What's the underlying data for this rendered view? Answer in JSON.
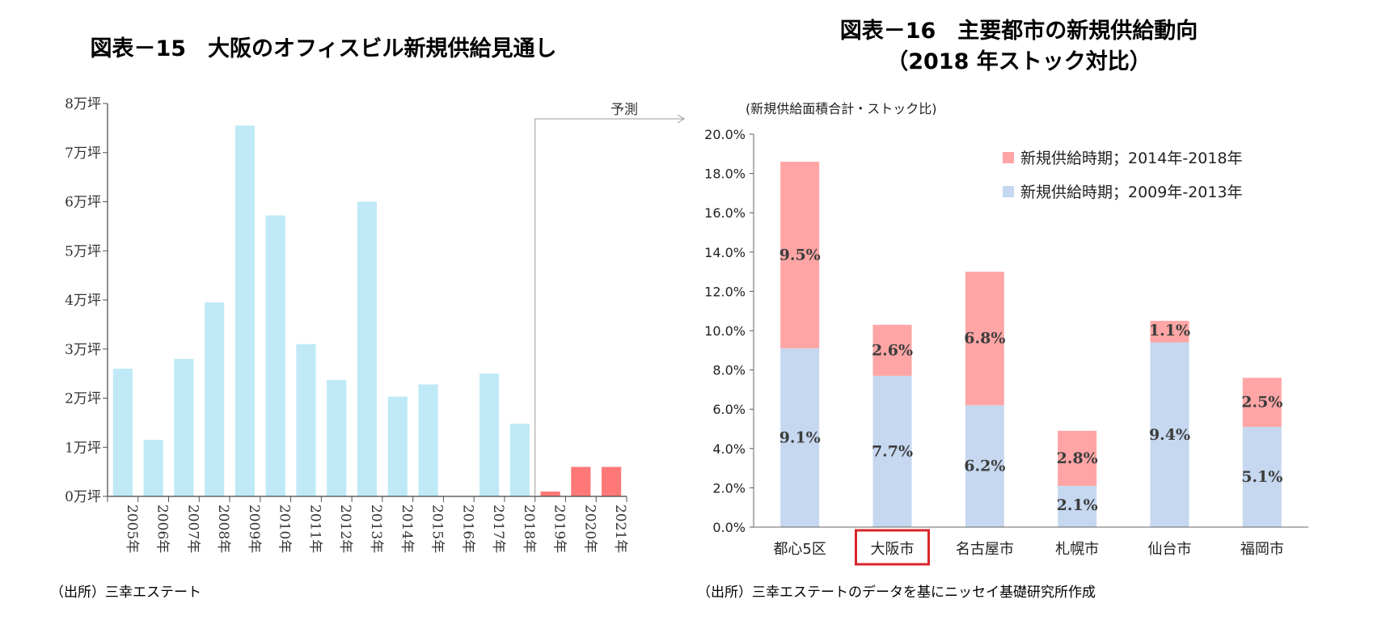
{
  "chart_data": [
    {
      "type": "bar",
      "title": "図表－15　大阪のオフィスビル新規供給見通し",
      "categories": [
        "2005年",
        "2006年",
        "2007年",
        "2008年",
        "2009年",
        "2010年",
        "2011年",
        "2012年",
        "2013年",
        "2014年",
        "2015年",
        "2016年",
        "2017年",
        "2018年",
        "2019年",
        "2020年",
        "2021年"
      ],
      "values": [
        2.6,
        1.15,
        2.8,
        3.95,
        7.55,
        5.72,
        3.1,
        2.37,
        6.0,
        2.03,
        2.28,
        0,
        2.5,
        1.48,
        0.1,
        0.6,
        0.6
      ],
      "forecast_start_index": 14,
      "forecast_label": "予測",
      "yticks": [
        "0万坪",
        "1万坪",
        "2万坪",
        "3万坪",
        "4万坪",
        "5万坪",
        "6万坪",
        "7万坪",
        "8万坪"
      ],
      "ylim": [
        0,
        8
      ],
      "colors": {
        "actual": "#bfe9f6",
        "forecast": "#ff7878"
      },
      "source": "（出所）三幸エステート"
    },
    {
      "type": "bar",
      "stacked": true,
      "title_line1": "図表－16　主要都市の新規供給動向",
      "title_line2": "（2018 年ストック対比）",
      "ylabel": "(新規供給面積合計・ストック比)",
      "categories": [
        "都心5区",
        "大阪市",
        "名古屋市",
        "札幌市",
        "仙台市",
        "福岡市"
      ],
      "highlight_category": "大阪市",
      "series": [
        {
          "name": "新規供給時期；2009年-2013年",
          "color": "#c6d8f0",
          "values": [
            9.1,
            7.7,
            6.2,
            2.1,
            9.4,
            5.1
          ],
          "labels": [
            "9.1%",
            "7.7%",
            "6.2%",
            "2.1%",
            "9.4%",
            "5.1%"
          ]
        },
        {
          "name": "新規供給時期；2014年-2018年",
          "color": "#ffa5a5",
          "values": [
            9.5,
            2.6,
            6.8,
            2.8,
            1.1,
            2.5
          ],
          "labels": [
            "9.5%",
            "2.6%",
            "6.8%",
            "2.8%",
            "1.1%",
            "2.5%"
          ]
        }
      ],
      "yticks": [
        "0.0%",
        "2.0%",
        "4.0%",
        "6.0%",
        "8.0%",
        "10.0%",
        "12.0%",
        "14.0%",
        "16.0%",
        "18.0%",
        "20.0%"
      ],
      "ylim": [
        0,
        20
      ],
      "legend_position": "top-right",
      "highlight_color": "#d9262b",
      "source": "（出所）三幸エステートのデータを基にニッセイ基礎研究所作成"
    }
  ]
}
